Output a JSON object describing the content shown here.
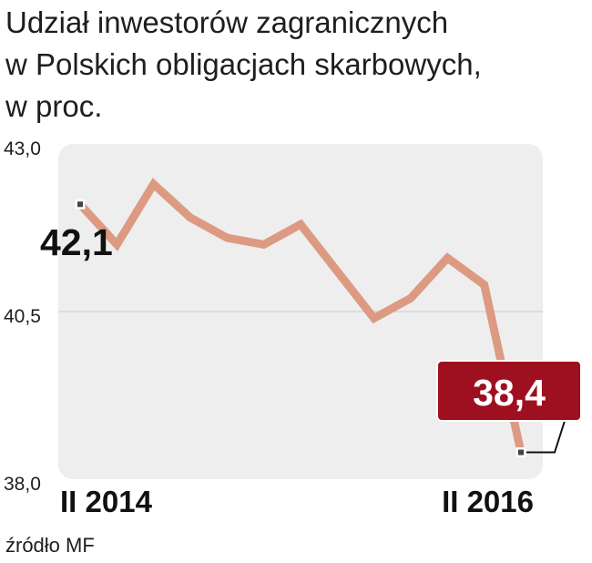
{
  "title_lines": [
    "Udział inwestorów zagranicznych",
    "w Polskich obligacjach skarbowych,",
    "w proc."
  ],
  "source": "źródło MF",
  "colors": {
    "line": "#dd9a83",
    "plot_bg": "#eeeeee",
    "gridline": "#d6d6d6",
    "callout_fill": "#9e0f20",
    "marker": "#444444"
  },
  "chart_data": {
    "type": "line",
    "title": "Udział inwestorów zagranicznych w Polskich obligacjach skarbowych, w proc.",
    "xlabel": "",
    "ylabel": "",
    "ylim": [
      38.0,
      43.0
    ],
    "yticks": [
      "38,0",
      "40,5",
      "43,0"
    ],
    "x_tick_labels": [
      "II 2014",
      "II 2016"
    ],
    "grid": "horizontal gridline at 40,5",
    "series": [
      {
        "values": [
          42.1,
          41.5,
          42.4,
          41.9,
          41.6,
          41.5,
          41.8,
          41.1,
          40.4,
          40.7,
          41.3,
          40.9,
          38.4
        ]
      }
    ],
    "annotations": {
      "start_value": "42,1",
      "end_value": "38,4"
    }
  }
}
